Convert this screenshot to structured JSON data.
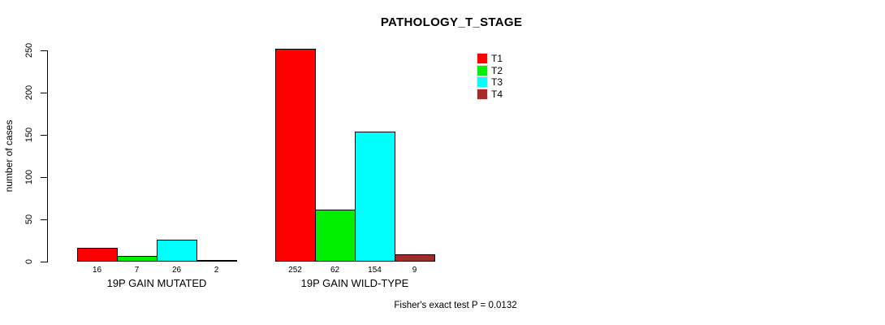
{
  "chart_data": {
    "type": "bar",
    "title": "PATHOLOGY_T_STAGE",
    "xlabel": "",
    "ylabel": "number of cases",
    "ylim": [
      0,
      250
    ],
    "yticks": [
      0,
      50,
      100,
      150,
      200,
      250
    ],
    "categories": [
      "19P GAIN MUTATED",
      "19P GAIN WILD-TYPE"
    ],
    "series": [
      {
        "name": "T1",
        "color": "#ff0000",
        "values": [
          16,
          252
        ]
      },
      {
        "name": "T2",
        "color": "#00ee00",
        "values": [
          7,
          62
        ]
      },
      {
        "name": "T3",
        "color": "#00ffff",
        "values": [
          26,
          154
        ]
      },
      {
        "name": "T4",
        "color": "#a52a2a",
        "values": [
          2,
          9
        ]
      }
    ],
    "bar_value_labels_shown": true,
    "legend_position": "top-right",
    "grid": false,
    "background": "#ffffff",
    "annotation": "Fisher's exact test P = 0.0132"
  }
}
